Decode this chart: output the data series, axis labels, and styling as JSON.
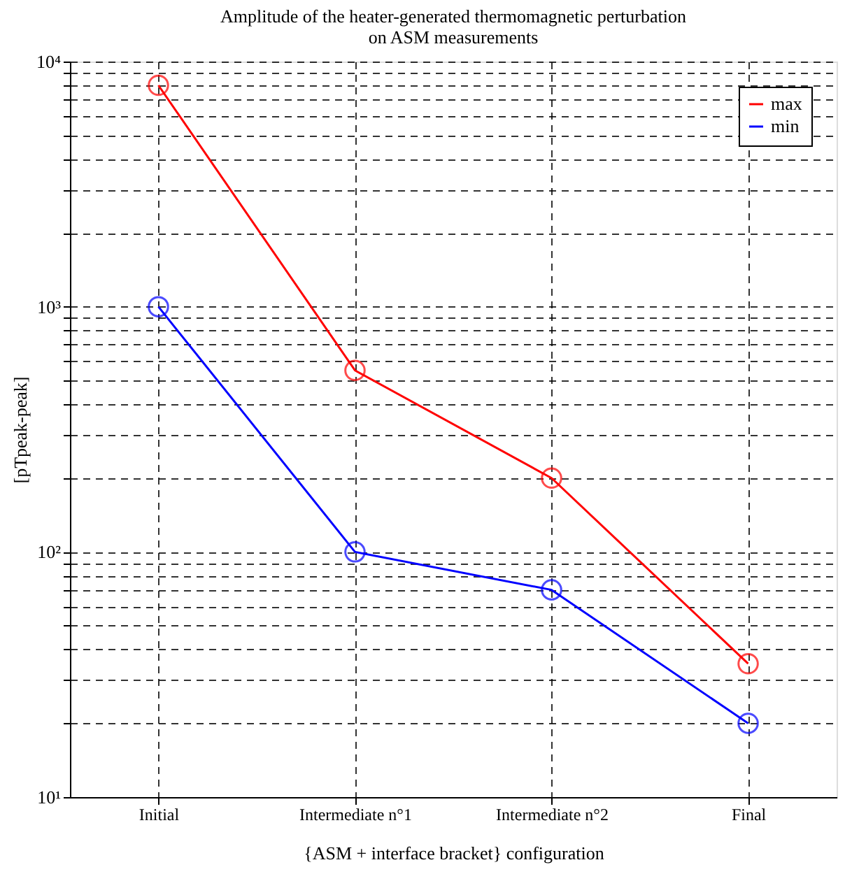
{
  "chart_data": {
    "type": "line",
    "title": "Amplitude of the heater-generated thermomagnetic perturbation\non ASM measurements",
    "xlabel": "{ASM + interface bracket} configuration",
    "ylabel": "[pTpeak-peak]",
    "categories": [
      "Initial",
      "Intermediate n°1",
      "Intermediate n°2",
      "Final"
    ],
    "series": [
      {
        "name": "max",
        "color": "#ff0000",
        "values": [
          8000,
          550,
          200,
          35
        ]
      },
      {
        "name": "min",
        "color": "#0000ff",
        "values": [
          1000,
          100,
          70,
          20
        ]
      }
    ],
    "log": true,
    "ylim": [
      10,
      10000
    ],
    "yticks": [
      {
        "value": 10,
        "label": "10¹"
      },
      {
        "value": 20,
        "label": null
      },
      {
        "value": 30,
        "label": null
      },
      {
        "value": 40,
        "label": null
      },
      {
        "value": 50,
        "label": null
      },
      {
        "value": 60,
        "label": null
      },
      {
        "value": 70,
        "label": null
      },
      {
        "value": 80,
        "label": null
      },
      {
        "value": 90,
        "label": null
      },
      {
        "value": 100,
        "label": "10²"
      },
      {
        "value": 200,
        "label": null
      },
      {
        "value": 300,
        "label": null
      },
      {
        "value": 400,
        "label": null
      },
      {
        "value": 500,
        "label": null
      },
      {
        "value": 600,
        "label": null
      },
      {
        "value": 700,
        "label": null
      },
      {
        "value": 800,
        "label": null
      },
      {
        "value": 900,
        "label": null
      },
      {
        "value": 1000,
        "label": "10³"
      },
      {
        "value": 2000,
        "label": null
      },
      {
        "value": 3000,
        "label": null
      },
      {
        "value": 4000,
        "label": null
      },
      {
        "value": 5000,
        "label": null
      },
      {
        "value": 6000,
        "label": null
      },
      {
        "value": 7000,
        "label": null
      },
      {
        "value": 8000,
        "label": null
      },
      {
        "value": 9000,
        "label": null
      },
      {
        "value": 10000,
        "label": "10⁴"
      }
    ],
    "grid": true,
    "legend": "top right",
    "marker": "circle",
    "line_style": "solid"
  }
}
